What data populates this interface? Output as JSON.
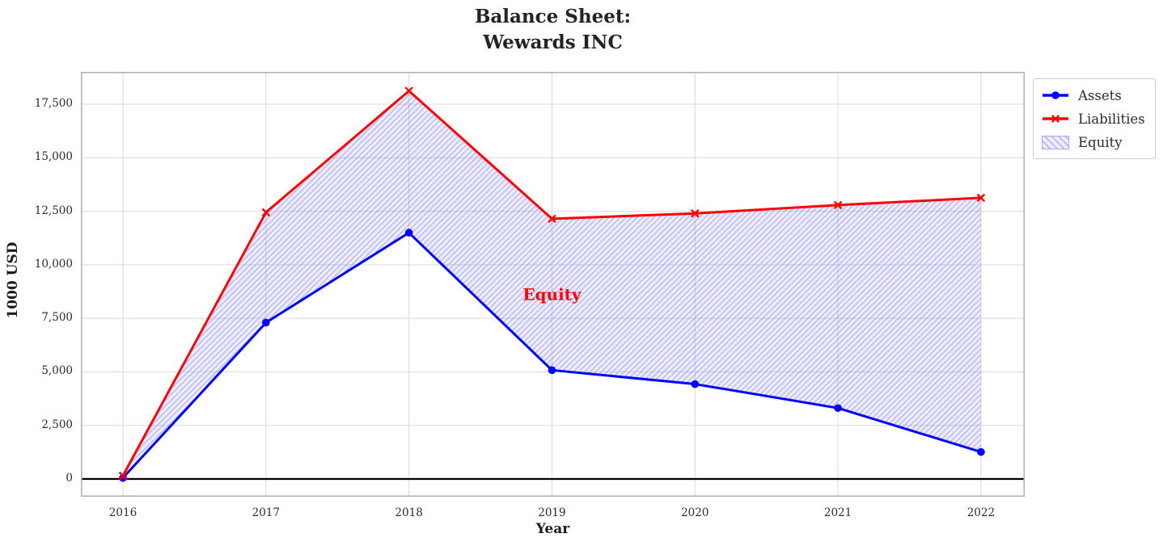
{
  "title_lines": [
    "Balance Sheet:",
    "Wewards INC"
  ],
  "chart_data": {
    "type": "line",
    "title": "Balance Sheet:\nWewards INC",
    "xlabel": "Year",
    "ylabel": "1000 USD",
    "x": [
      2016,
      2017,
      2018,
      2019,
      2020,
      2021,
      2022
    ],
    "series": [
      {
        "name": "Assets",
        "color": "#0000ff",
        "marker": "circle",
        "line_width": 3,
        "values": [
          50,
          7300,
          11500,
          5080,
          4430,
          3310,
          1260
        ]
      },
      {
        "name": "Liabilities",
        "color": "#ff0000",
        "marker": "x",
        "line_width": 3,
        "values": [
          150,
          12450,
          18120,
          12150,
          12400,
          12790,
          13130
        ]
      }
    ],
    "fill_between": {
      "name": "Equity",
      "lower": "Assets",
      "upper": "Liabilities",
      "fill_color": "rgba(78,78,235,0.10)",
      "hatch": "///",
      "hatch_color": "rgba(122,122,235,0.42)"
    },
    "annotation": {
      "text": "Equity",
      "x": 2019,
      "y": 8350,
      "color": "#ff0000",
      "font_size": 20
    },
    "xticks": {
      "values": [
        2016,
        2017,
        2018,
        2019,
        2020,
        2021,
        2022
      ],
      "labels": [
        "2016",
        "2017",
        "2018",
        "2019",
        "2020",
        "2021",
        "2022"
      ]
    },
    "yticks": {
      "values": [
        0,
        2500,
        5000,
        7500,
        10000,
        12500,
        15000,
        17500
      ],
      "labels": [
        "0",
        "2,500",
        "5,000",
        "7,500",
        "10,000",
        "12,500",
        "15,000",
        "17,500"
      ]
    },
    "xlim": [
      2015.706,
      2022.306
    ],
    "ylim": [
      -830,
      19010
    ],
    "grid": true,
    "grid_color": "#d9d9d9",
    "spine_color": "#b3b3b3",
    "zero_line": {
      "y": 0,
      "color": "#000000",
      "width": 2.2
    },
    "legend": {
      "position": "outside-upper-right",
      "entries": [
        "Assets",
        "Liabilities",
        "Equity"
      ]
    }
  }
}
